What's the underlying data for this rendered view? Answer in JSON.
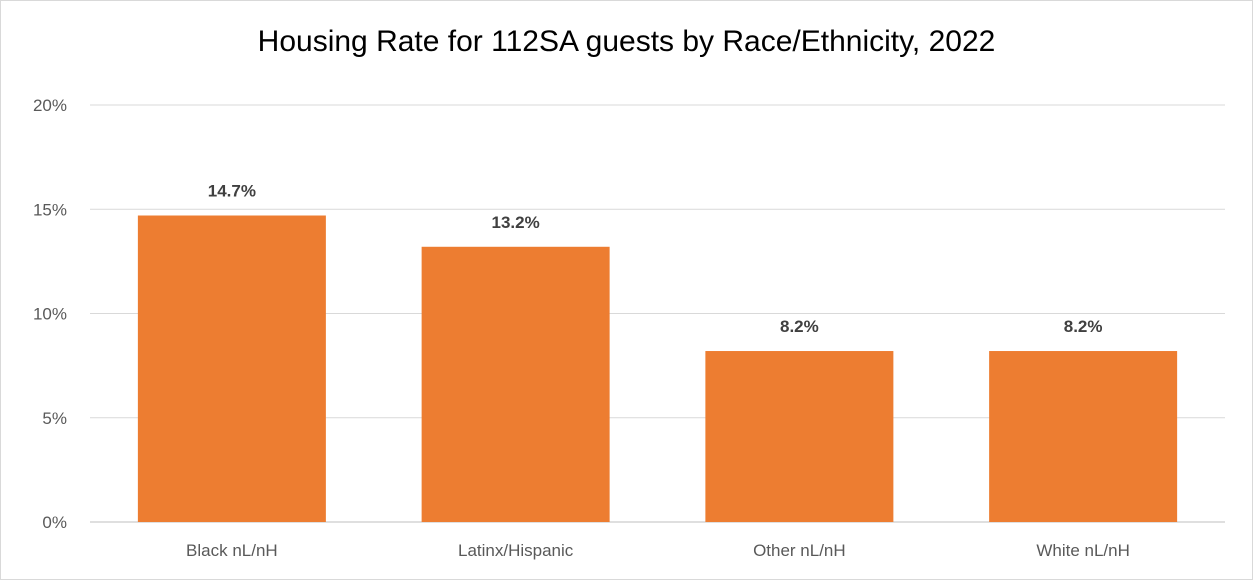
{
  "chart_data": {
    "type": "bar",
    "title": "Housing Rate for 112SA guests by Race/Ethnicity, 2022",
    "categories": [
      "Black nL/nH",
      "Latinx/Hispanic",
      "Other nL/nH",
      "White nL/nH"
    ],
    "values": [
      14.7,
      13.2,
      8.2,
      8.2
    ],
    "data_labels": [
      "14.7%",
      "13.2%",
      "8.2%",
      "8.2%"
    ],
    "yticks": [
      0,
      5,
      10,
      15,
      20
    ],
    "ytick_labels": [
      "0%",
      "5%",
      "10%",
      "15%",
      "20%"
    ],
    "ylim": [
      0,
      20
    ],
    "xlabel": "",
    "ylabel": "",
    "grid": true,
    "legend": "none",
    "bar_color": "#ED7D31"
  }
}
